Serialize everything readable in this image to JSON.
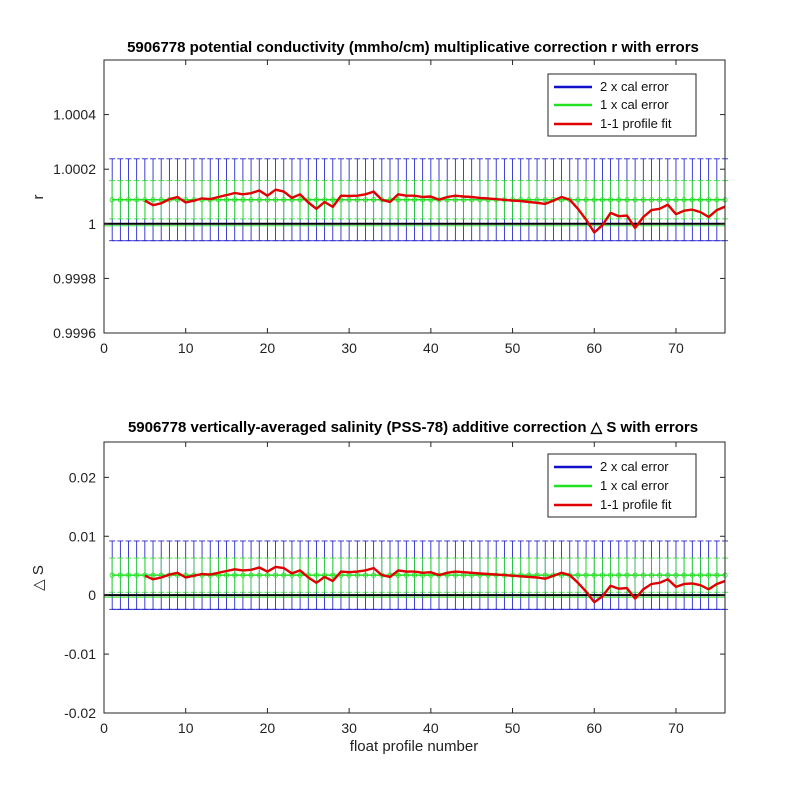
{
  "chart_data": [
    {
      "type": "line",
      "title": "5906778 potential conductivity (mmho/cm) multiplicative correction r with errors",
      "xlabel": "",
      "ylabel": "r",
      "xlim": [
        0,
        76
      ],
      "ylim": [
        0.9996,
        1.0006
      ],
      "xticks": [
        0,
        10,
        20,
        30,
        40,
        50,
        60,
        70
      ],
      "yticks": [
        "0.9996",
        "0.9998",
        "1",
        "1.0002",
        "1.0004"
      ],
      "ytick_values": [
        0.9996,
        0.9998,
        1.0,
        1.0002,
        1.0004
      ],
      "legend": {
        "position": "top-right",
        "entries": [
          "2 x cal error",
          "1 x cal error",
          "1-1 profile fit"
        ]
      },
      "grid": false,
      "baseline": 1.0,
      "error_center": 1.000088,
      "err1": 7e-05,
      "err2": 0.00015,
      "err_x": [
        1,
        76
      ],
      "series": [
        {
          "name": "1-1 profile fit",
          "color": "#e00000",
          "x": [
            5,
            6,
            7,
            8,
            9,
            10,
            11,
            12,
            13,
            14,
            15,
            16,
            17,
            18,
            19,
            20,
            21,
            22,
            23,
            24,
            25,
            26,
            27,
            28,
            29,
            30,
            31,
            32,
            33,
            34,
            35,
            36,
            37,
            38,
            39,
            40,
            41,
            42,
            43,
            44,
            45,
            46,
            47,
            48,
            49,
            50,
            51,
            52,
            53,
            54,
            55,
            56,
            57,
            58,
            59,
            60,
            61,
            62,
            63,
            64,
            65,
            66,
            67,
            68,
            69,
            70,
            71,
            72,
            73,
            74,
            75,
            76
          ],
          "y": [
            1.000085,
            1.000068,
            1.000075,
            1.00009,
            1.000098,
            1.000078,
            1.000085,
            1.000093,
            1.00009,
            1.000098,
            1.000105,
            1.000113,
            1.000108,
            1.000112,
            1.000122,
            1.000103,
            1.000125,
            1.000118,
            1.000095,
            1.000108,
            1.000078,
            1.000055,
            1.00008,
            1.000062,
            1.000103,
            1.000102,
            1.000103,
            1.000108,
            1.000118,
            1.000088,
            1.00008,
            1.000108,
            1.000103,
            1.000103,
            1.000098,
            1.0001,
            1.000088,
            1.000098,
            1.000103,
            1.0001,
            1.000098,
            1.000095,
            1.000093,
            1.00009,
            1.000088,
            1.000085,
            1.000083,
            1.00008,
            1.000077,
            1.000073,
            1.000085,
            1.000098,
            1.000088,
            1.000055,
            1.000015,
            0.999968,
            0.999995,
            1.00004,
            1.000028,
            1.00003,
            0.999985,
            1.000025,
            1.00005,
            1.000055,
            1.00007,
            1.000035,
            1.000048,
            1.000052,
            1.000043,
            1.000025,
            1.00005,
            1.000063
          ]
        }
      ]
    },
    {
      "type": "line",
      "title": "5906778 vertically-averaged salinity (PSS-78) additive correction △ S with errors",
      "xlabel": "float profile number",
      "ylabel": "△ S",
      "xlim": [
        0,
        76
      ],
      "ylim": [
        -0.02,
        0.026
      ],
      "xticks": [
        0,
        10,
        20,
        30,
        40,
        50,
        60,
        70
      ],
      "yticks": [
        "-0.02",
        "-0.01",
        "0",
        "0.01",
        "0.02"
      ],
      "ytick_values": [
        -0.02,
        -0.01,
        0,
        0.01,
        0.02
      ],
      "legend": {
        "position": "top-right",
        "entries": [
          "2 x cal error",
          "1 x cal error",
          "1-1 profile fit"
        ]
      },
      "grid": false,
      "baseline": 0,
      "error_center": 0.0034,
      "err1": 0.0029,
      "err2": 0.0058,
      "err_x": [
        1,
        76
      ],
      "series": [
        {
          "name": "1-1 profile fit",
          "color": "#e00000",
          "x": [
            5,
            6,
            7,
            8,
            9,
            10,
            11,
            12,
            13,
            14,
            15,
            16,
            17,
            18,
            19,
            20,
            21,
            22,
            23,
            24,
            25,
            26,
            27,
            28,
            29,
            30,
            31,
            32,
            33,
            34,
            35,
            36,
            37,
            38,
            39,
            40,
            41,
            42,
            43,
            44,
            45,
            46,
            47,
            48,
            49,
            50,
            51,
            52,
            53,
            54,
            55,
            56,
            57,
            58,
            59,
            60,
            61,
            62,
            63,
            64,
            65,
            66,
            67,
            68,
            69,
            70,
            71,
            72,
            73,
            74,
            75,
            76
          ],
          "y": [
            0.0033,
            0.0027,
            0.003,
            0.0035,
            0.0038,
            0.003,
            0.0033,
            0.0036,
            0.0035,
            0.0038,
            0.0041,
            0.0044,
            0.0042,
            0.0043,
            0.0047,
            0.004,
            0.0048,
            0.0046,
            0.0037,
            0.0042,
            0.003,
            0.0021,
            0.0031,
            0.0024,
            0.004,
            0.0039,
            0.004,
            0.0042,
            0.0046,
            0.0034,
            0.0031,
            0.0042,
            0.004,
            0.004,
            0.0038,
            0.0039,
            0.0034,
            0.0038,
            0.004,
            0.0039,
            0.0038,
            0.0037,
            0.0036,
            0.0035,
            0.0034,
            0.0033,
            0.0032,
            0.0031,
            0.003,
            0.0028,
            0.0033,
            0.0038,
            0.0034,
            0.0021,
            0.0006,
            -0.0012,
            -0.0002,
            0.0016,
            0.0011,
            0.0012,
            -0.0006,
            0.001,
            0.0019,
            0.0021,
            0.0027,
            0.0014,
            0.0019,
            0.002,
            0.0017,
            0.001,
            0.0019,
            0.0024
          ]
        }
      ]
    }
  ],
  "colors": {
    "cal2": "#1010c8",
    "cal1": "#22e022",
    "fit": "#e00000",
    "baseline": "#000000"
  }
}
